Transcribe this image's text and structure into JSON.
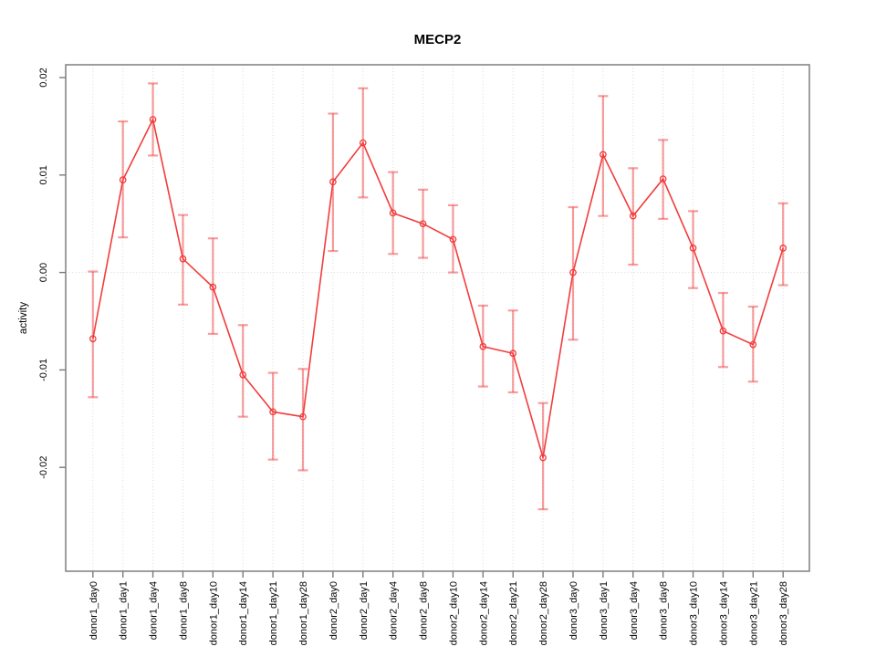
{
  "window": {
    "title": "MECP2"
  },
  "colors": {
    "background": "#ffffff",
    "series_line": "#f23c3c",
    "point_stroke": "#f23c3c",
    "errorbar": "rgba(242,61,61,0.5)",
    "grid": "#d9d9d9",
    "plot_border": "#878787",
    "tick": "#7a7a7a",
    "text": "#000000"
  },
  "chart_data": {
    "type": "line",
    "title": "MECP2",
    "xlabel": "",
    "ylabel": "activity",
    "legend_position": "none",
    "grid": "vertical dotted gridline at every category; horizontal dotted line at y=0 only",
    "marker": "open-circle",
    "error_bars": true,
    "ylim": [
      -0.0307,
      0.0213
    ],
    "yticks": [
      0.02,
      0.01,
      0.0,
      -0.01,
      -0.02
    ],
    "ytick_labels": [
      "0.02",
      "0.01",
      "0.00",
      "-0.01",
      "-0.02"
    ],
    "categories": [
      "donor1_day0",
      "donor1_day1",
      "donor1_day4",
      "donor1_day8",
      "donor1_day10",
      "donor1_day14",
      "donor1_day21",
      "donor1_day28",
      "donor2_day0",
      "donor2_day1",
      "donor2_day4",
      "donor2_day8",
      "donor2_day10",
      "donor2_day14",
      "donor2_day21",
      "donor2_day28",
      "donor3_day0",
      "donor3_day1",
      "donor3_day4",
      "donor3_day8",
      "donor3_day10",
      "donor3_day14",
      "donor3_day21",
      "donor3_day28"
    ],
    "series": [
      {
        "name": "activity",
        "values": [
          -0.0068,
          0.0095,
          0.0157,
          0.0014,
          -0.0015,
          -0.0105,
          -0.0143,
          -0.0148,
          0.0093,
          0.0133,
          0.0061,
          0.005,
          0.0034,
          -0.0076,
          -0.0083,
          -0.019,
          0.0,
          0.0121,
          0.0058,
          0.0096,
          0.0025,
          -0.006,
          -0.0074,
          0.0025
        ],
        "err_high": [
          0.0001,
          0.0155,
          0.0194,
          0.0059,
          0.0035,
          -0.0054,
          -0.0103,
          -0.0099,
          0.0163,
          0.0189,
          0.0103,
          0.0085,
          0.0069,
          -0.0034,
          -0.0039,
          -0.0134,
          0.0067,
          0.0181,
          0.0107,
          0.0136,
          0.0063,
          -0.0021,
          -0.0035,
          0.0071
        ],
        "err_low": [
          -0.0128,
          0.0036,
          0.012,
          -0.0033,
          -0.0063,
          -0.0148,
          -0.0192,
          -0.0203,
          0.0022,
          0.0077,
          0.0019,
          0.0015,
          0.0,
          -0.0117,
          -0.0123,
          -0.0243,
          -0.0069,
          0.0058,
          0.0008,
          0.0055,
          -0.0016,
          -0.0097,
          -0.0112,
          -0.0013
        ]
      }
    ]
  }
}
